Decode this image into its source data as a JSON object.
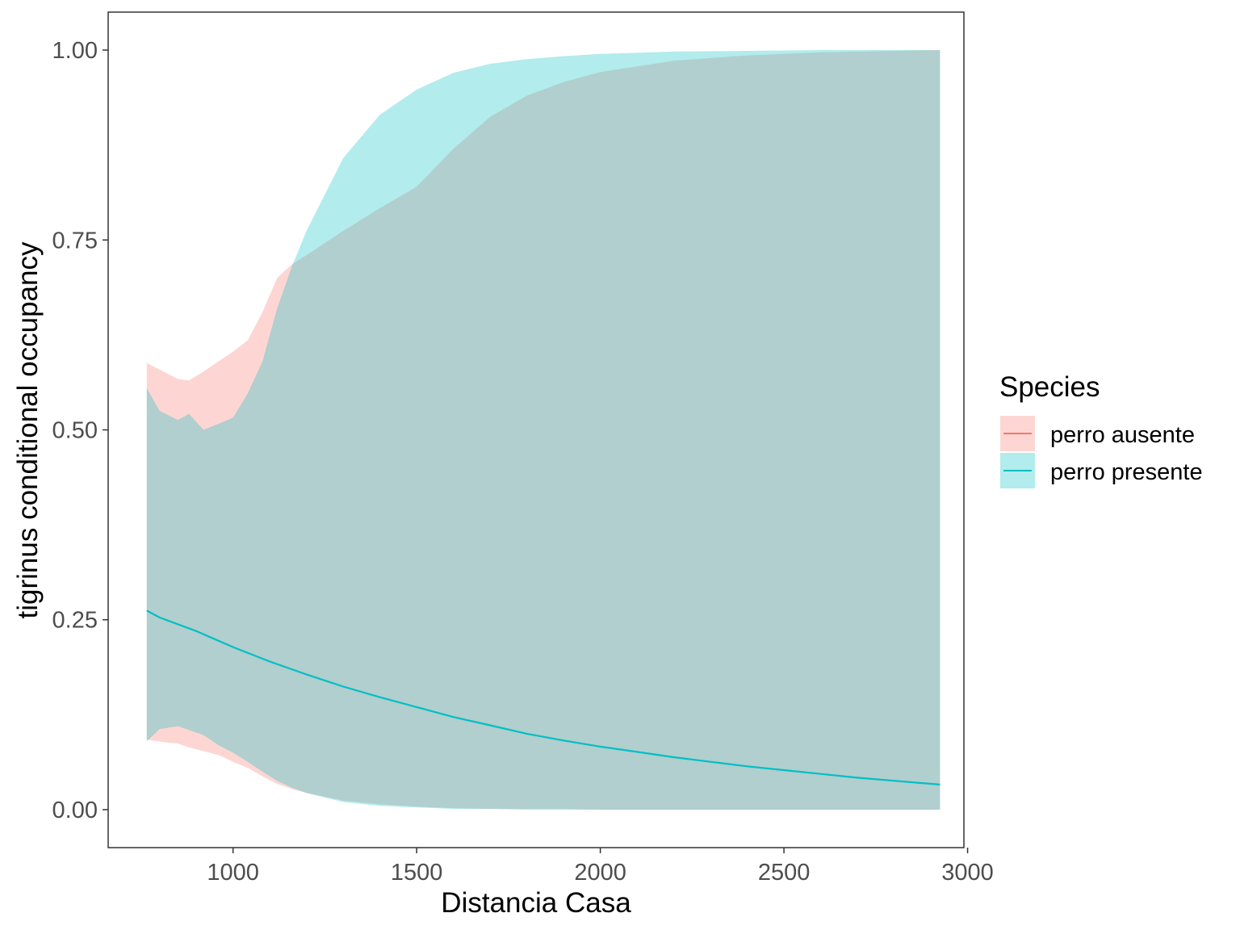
{
  "chart_data": {
    "type": "area",
    "xlabel": "Distancia Casa",
    "ylabel": "tigrinus conditional occupancy",
    "xlim": [
      660,
      2990
    ],
    "ylim": [
      -0.05,
      1.05
    ],
    "x_ticks": [
      1000,
      1500,
      2000,
      2500,
      3000
    ],
    "x_tick_labels": [
      "1000",
      "1500",
      "2000",
      "2500",
      "3000"
    ],
    "y_ticks": [
      0,
      0.25,
      0.5,
      0.75,
      1.0
    ],
    "y_tick_labels": [
      "0.00",
      "0.25",
      "0.50",
      "0.75",
      "1.00"
    ],
    "grid": false,
    "legend": {
      "title": "Species",
      "position": "right",
      "entries": [
        "perro ausente",
        "perro presente"
      ]
    },
    "series": [
      {
        "name": "perro ausente",
        "color": "#F8766D",
        "fill_opacity": 0.3,
        "x": [
          765,
          810,
          850,
          880,
          920,
          960,
          1000,
          1040,
          1080,
          1120,
          1160,
          1200,
          1300,
          1400,
          1500,
          1600,
          1700,
          1800,
          1900,
          2000,
          2200,
          2400,
          2600,
          2800,
          2925
        ],
        "lower": [
          0.092,
          0.089,
          0.087,
          0.082,
          0.077,
          0.072,
          0.063,
          0.055,
          0.044,
          0.034,
          0.027,
          0.022,
          0.012,
          0.007,
          0.004,
          0.002,
          0.001,
          0.001,
          0.001,
          0.0,
          0.0,
          0.0,
          0.0,
          0.0,
          0.0
        ],
        "upper": [
          0.588,
          0.577,
          0.567,
          0.565,
          0.577,
          0.59,
          0.603,
          0.618,
          0.655,
          0.7,
          0.718,
          0.73,
          0.762,
          0.792,
          0.82,
          0.87,
          0.912,
          0.94,
          0.958,
          0.971,
          0.986,
          0.993,
          0.997,
          0.999,
          1.0
        ]
      },
      {
        "name": "perro presente",
        "color": "#00BFC4",
        "fill_opacity": 0.3,
        "x": [
          765,
          800,
          850,
          880,
          920,
          960,
          1000,
          1040,
          1080,
          1120,
          1160,
          1200,
          1300,
          1400,
          1500,
          1600,
          1700,
          1800,
          1900,
          2000,
          2200,
          2400,
          2600,
          2800,
          2925
        ],
        "lower": [
          0.09,
          0.106,
          0.11,
          0.105,
          0.098,
          0.085,
          0.075,
          0.063,
          0.05,
          0.038,
          0.029,
          0.022,
          0.01,
          0.005,
          0.003,
          0.001,
          0.001,
          0.0,
          0.0,
          0.0,
          0.0,
          0.0,
          0.0,
          0.0,
          0.0
        ],
        "upper": [
          0.555,
          0.525,
          0.513,
          0.521,
          0.5,
          0.508,
          0.516,
          0.548,
          0.59,
          0.66,
          0.715,
          0.762,
          0.858,
          0.915,
          0.948,
          0.97,
          0.982,
          0.988,
          0.992,
          0.995,
          0.998,
          0.999,
          1.0,
          1.0,
          1.0
        ],
        "line_x": [
          765,
          800,
          900,
          1000,
          1100,
          1200,
          1300,
          1400,
          1500,
          1600,
          1700,
          1800,
          1900,
          2000,
          2100,
          2200,
          2300,
          2400,
          2500,
          2600,
          2700,
          2800,
          2925
        ],
        "line_y": [
          0.262,
          0.253,
          0.235,
          0.214,
          0.195,
          0.178,
          0.162,
          0.148,
          0.135,
          0.122,
          0.111,
          0.1,
          0.091,
          0.083,
          0.076,
          0.069,
          0.063,
          0.057,
          0.052,
          0.047,
          0.042,
          0.038,
          0.033
        ]
      }
    ]
  }
}
